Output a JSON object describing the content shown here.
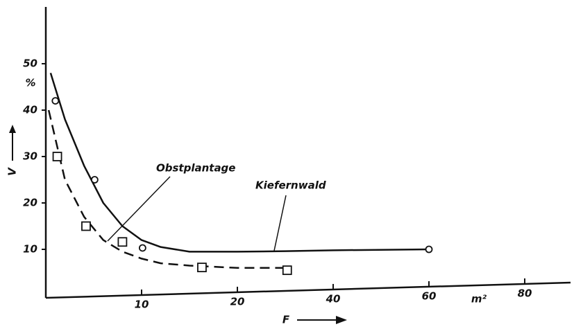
{
  "chart_data": {
    "type": "scatter",
    "x_label": "F",
    "x_unit": "m²",
    "y_label": "V",
    "y_unit": "%",
    "xlim": [
      0,
      80
    ],
    "xticks": [
      10,
      20,
      40,
      60,
      80
    ],
    "ylim": [
      0,
      60
    ],
    "yticks": [
      10,
      20,
      30,
      40,
      50
    ],
    "series": [
      {
        "name": "Kiefernwald",
        "marker": "circle",
        "dash": false,
        "color": "#111",
        "x": [
          1,
          5.1,
          10.1,
          60
        ],
        "values": [
          42,
          25,
          10.3,
          10
        ],
        "curve_x": [
          0.5,
          2,
          4,
          6,
          8,
          10,
          12,
          15,
          20,
          30,
          40,
          60
        ],
        "curve_values": [
          48,
          38,
          28,
          20,
          15,
          12,
          10.5,
          9.5,
          9.5,
          9.6,
          9.8,
          10
        ]
      },
      {
        "name": "Obstplantage",
        "marker": "square",
        "dash": true,
        "color": "#111",
        "x": [
          1.2,
          4.2,
          8,
          16.3,
          30.4
        ],
        "values": [
          30,
          15,
          11.6,
          6.1,
          5.5
        ],
        "curve_x": [
          0.3,
          2,
          4,
          6,
          8,
          10,
          12,
          15,
          20,
          30
        ],
        "curve_values": [
          40,
          25,
          17,
          12,
          9.5,
          8,
          7,
          6.5,
          6,
          6
        ]
      }
    ]
  }
}
